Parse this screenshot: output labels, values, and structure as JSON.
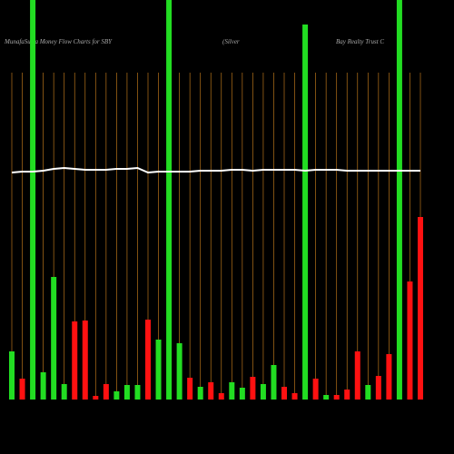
{
  "chart_data": {
    "type": "bar",
    "title_parts": [
      "MunafaSutra  Money Flow  Charts for SBY",
      "(Silver",
      "Bay Realty Trust C"
    ],
    "categories": [
      null,
      null,
      null,
      null,
      null,
      null,
      null,
      null,
      null,
      null,
      null,
      null,
      null,
      null,
      null,
      null,
      null,
      null,
      null,
      null,
      null,
      null,
      null,
      null,
      null,
      null,
      null,
      null,
      null,
      null,
      null,
      null,
      null,
      null,
      null,
      null,
      null,
      null,
      null,
      null
    ],
    "values": [
      53,
      23,
      440,
      30,
      135,
      17,
      86,
      87,
      4,
      17,
      9,
      16,
      16,
      88,
      66,
      440,
      62,
      24,
      14,
      19,
      7,
      19,
      13,
      25,
      17,
      38,
      14,
      7,
      413,
      23,
      5,
      5,
      11,
      53,
      16,
      26,
      50,
      440,
      130,
      201
    ],
    "bar_colors": [
      "#22dd22",
      "#ff1111",
      "#22dd22",
      "#22dd22",
      "#22dd22",
      "#22dd22",
      "#ff1111",
      "#ff1111",
      "#ff1111",
      "#ff1111",
      "#22dd22",
      "#22dd22",
      "#22dd22",
      "#ff1111",
      "#22dd22",
      "#22dd22",
      "#22dd22",
      "#ff1111",
      "#22dd22",
      "#ff1111",
      "#ff1111",
      "#22dd22",
      "#22dd22",
      "#ff1111",
      "#22dd22",
      "#22dd22",
      "#ff1111",
      "#ff1111",
      "#22dd22",
      "#ff1111",
      "#22dd22",
      "#ff1111",
      "#ff1111",
      "#ff1111",
      "#22dd22",
      "#ff1111",
      "#ff1111",
      "#22dd22",
      "#ff1111",
      "#ff1111"
    ],
    "line": {
      "color": "#ffffff",
      "values": [
        250,
        251,
        251,
        252,
        254,
        255,
        254,
        253,
        253,
        253,
        254,
        254,
        255,
        250,
        251,
        251,
        251,
        251,
        252,
        252,
        252,
        253,
        253,
        252,
        253,
        253,
        253,
        253,
        252,
        253,
        253,
        253,
        252,
        252,
        252,
        252,
        252,
        252,
        252,
        252
      ]
    },
    "ylim": [
      0,
      440
    ],
    "grid_color": "#b8741a"
  }
}
